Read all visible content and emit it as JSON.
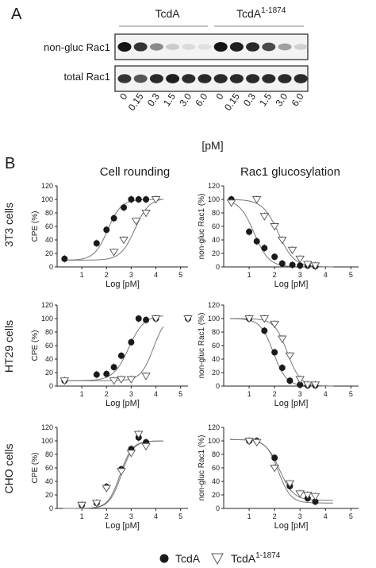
{
  "panel_labels": {
    "a": "A",
    "b": "B"
  },
  "blot": {
    "groups": [
      "TcdA",
      "TcdA"
    ],
    "group2_superscript": "1-1874",
    "rows": [
      "non-gluc Rac1",
      "total Rac1"
    ],
    "lanes": [
      "0",
      "0.15",
      "0.3",
      "1.5",
      "3.0",
      "6.0",
      "0",
      "0.15",
      "0.3",
      "1.5",
      "3.0",
      "6.0"
    ],
    "unit": "[pM]",
    "band_intensity": {
      "non-gluc Rac1": [
        1.0,
        0.85,
        0.45,
        0.15,
        0.08,
        0.05,
        1.0,
        0.95,
        0.9,
        0.75,
        0.35,
        0.12
      ],
      "total Rac1": [
        0.85,
        0.7,
        0.9,
        0.95,
        0.9,
        0.9,
        0.9,
        0.9,
        0.9,
        0.9,
        0.9,
        0.9
      ]
    }
  },
  "column_titles": [
    "Cell rounding",
    "Rac1 glucosylation"
  ],
  "row_titles": [
    "3T3 cells",
    "HT29 cells",
    "CHO cells"
  ],
  "legend": {
    "s1": "TcdA",
    "s2_base": "TcdA",
    "s2_sup": "1-1874"
  },
  "colors": {
    "s1": "#1a1a1a",
    "s2": "#ffffff",
    "stroke": "#555555"
  },
  "chart_data": [
    {
      "type": "scatter",
      "ylabel": "CPE (%)",
      "xlabel": "Log [pM]",
      "xlim": [
        0,
        5.3
      ],
      "ylim": [
        0,
        120
      ],
      "xticks": [
        "1",
        "2",
        "3",
        "4",
        "5"
      ],
      "yticks": [
        "0",
        "20",
        "40",
        "60",
        "80",
        "100",
        "120"
      ],
      "series": [
        {
          "name": "TcdA",
          "x": [
            0.3,
            1.6,
            2.0,
            2.3,
            2.7,
            3.0,
            3.3,
            3.6
          ],
          "y": [
            12,
            35,
            55,
            72,
            88,
            100,
            100,
            100
          ]
        },
        {
          "name": "TcdA 1-1874",
          "x": [
            2.3,
            2.7,
            3.2,
            3.6,
            4.0
          ],
          "y": [
            22,
            40,
            68,
            80,
            100
          ]
        }
      ],
      "fits": [
        {
          "ec50": 2.05,
          "hill": 1.6,
          "top": 100,
          "bottom": 10
        },
        {
          "ec50": 3.15,
          "hill": 1.5,
          "top": 102,
          "bottom": 10
        }
      ]
    },
    {
      "type": "scatter",
      "ylabel": "non-gluc Rac1 (%)",
      "xlabel": "Log [pM]",
      "xlim": [
        0,
        5.3
      ],
      "ylim": [
        0,
        120
      ],
      "xticks": [
        "1",
        "2",
        "3",
        "4",
        "5"
      ],
      "yticks": [
        "0",
        "20",
        "40",
        "60",
        "80",
        "100",
        "120"
      ],
      "series": [
        {
          "name": "TcdA",
          "x": [
            0.3,
            1.0,
            1.3,
            1.6,
            2.0,
            2.3,
            2.7,
            3.0,
            3.3,
            3.6
          ],
          "y": [
            100,
            52,
            38,
            28,
            15,
            5,
            3,
            2,
            2,
            1
          ]
        },
        {
          "name": "TcdA 1-1874",
          "x": [
            0.3,
            1.3,
            1.6,
            2.0,
            2.3,
            2.7,
            3.0,
            3.3,
            3.6
          ],
          "y": [
            95,
            100,
            75,
            60,
            40,
            25,
            12,
            4,
            2
          ]
        }
      ],
      "fits": [
        {
          "ec50": 1.2,
          "hill": -1.5,
          "top": 100,
          "bottom": 0
        },
        {
          "ec50": 2.15,
          "hill": -1.4,
          "top": 100,
          "bottom": 0
        }
      ]
    },
    {
      "type": "scatter",
      "ylabel": "CPE (%)",
      "xlabel": "Log [pM]",
      "xlim": [
        0,
        5.3
      ],
      "ylim": [
        0,
        120
      ],
      "xticks": [
        "1",
        "2",
        "3",
        "4",
        "5"
      ],
      "yticks": [
        "0",
        "20",
        "40",
        "60",
        "80",
        "100",
        "120"
      ],
      "series": [
        {
          "name": "TcdA",
          "x": [
            0.3,
            1.6,
            2.0,
            2.3,
            2.6,
            3.0,
            3.3,
            3.6,
            4.0,
            5.3
          ],
          "y": [
            8,
            17,
            18,
            28,
            45,
            65,
            100,
            98,
            100,
            100
          ]
        },
        {
          "name": "TcdA 1-1874",
          "x": [
            0.3,
            2.3,
            2.6,
            3.0,
            3.6,
            4.0,
            5.3
          ],
          "y": [
            8,
            8,
            10,
            10,
            15,
            100,
            100
          ]
        }
      ],
      "fits": [
        {
          "ec50": 2.9,
          "hill": 1.4,
          "top": 105,
          "bottom": 8
        },
        {
          "ec50": 3.9,
          "hill": 1.7,
          "top": 105,
          "bottom": 8
        }
      ]
    },
    {
      "type": "scatter",
      "ylabel": "non-gluc Rac1 (%)",
      "xlabel": "Log [pM]",
      "xlim": [
        0,
        5.3
      ],
      "ylim": [
        0,
        120
      ],
      "xticks": [
        "1",
        "2",
        "3",
        "4",
        "5"
      ],
      "yticks": [
        "0",
        "20",
        "40",
        "60",
        "80",
        "100",
        "120"
      ],
      "series": [
        {
          "name": "TcdA",
          "x": [
            1.0,
            1.6,
            2.0,
            2.3,
            2.6,
            3.0,
            3.3,
            3.6
          ],
          "y": [
            100,
            82,
            50,
            27,
            8,
            2,
            1,
            1
          ]
        },
        {
          "name": "TcdA 1-1874",
          "x": [
            1.0,
            1.6,
            2.0,
            2.3,
            2.6,
            3.0,
            3.3,
            3.6
          ],
          "y": [
            100,
            100,
            92,
            70,
            45,
            10,
            2,
            2
          ]
        }
      ],
      "fits": [
        {
          "ec50": 1.95,
          "hill": -1.7,
          "top": 100,
          "bottom": 0
        },
        {
          "ec50": 2.5,
          "hill": -1.7,
          "top": 100,
          "bottom": 0
        }
      ]
    },
    {
      "type": "scatter",
      "ylabel": "CPE (%)",
      "xlabel": "Log [pM]",
      "xlim": [
        0,
        5.3
      ],
      "ylim": [
        0,
        120
      ],
      "xticks": [
        "1",
        "2",
        "3",
        "4",
        "5"
      ],
      "yticks": [
        "0",
        "20",
        "40",
        "60",
        "80",
        "100",
        "120"
      ],
      "series": [
        {
          "name": "TcdA",
          "x": [
            1.0,
            1.6,
            2.0,
            2.6,
            3.0,
            3.3,
            3.6
          ],
          "y": [
            5,
            8,
            32,
            58,
            88,
            105,
            98
          ]
        },
        {
          "name": "TcdA 1-1874",
          "x": [
            1.0,
            1.6,
            2.0,
            2.6,
            3.0,
            3.3,
            3.6
          ],
          "y": [
            5,
            8,
            30,
            55,
            82,
            110,
            92
          ]
        }
      ],
      "fits": [
        {
          "ec50": 2.55,
          "hill": 1.8,
          "top": 100,
          "bottom": 0
        },
        {
          "ec50": 2.6,
          "hill": 1.8,
          "top": 100,
          "bottom": 0
        }
      ]
    },
    {
      "type": "scatter",
      "ylabel": "non-gluc Rac1 (%)",
      "xlabel": "Log [pM]",
      "xlim": [
        0,
        5.3
      ],
      "ylim": [
        0,
        120
      ],
      "xticks": [
        "1",
        "2",
        "3",
        "4",
        "5"
      ],
      "yticks": [
        "0",
        "20",
        "40",
        "60",
        "80",
        "100",
        "120"
      ],
      "series": [
        {
          "name": "TcdA",
          "x": [
            1.0,
            1.3,
            2.0,
            2.6,
            3.3,
            3.6
          ],
          "y": [
            100,
            100,
            75,
            33,
            15,
            10
          ]
        },
        {
          "name": "TcdA 1-1874",
          "x": [
            1.0,
            1.3,
            2.0,
            2.6,
            3.0,
            3.3,
            3.6
          ],
          "y": [
            100,
            98,
            60,
            37,
            22,
            20,
            18
          ]
        }
      ],
      "fits": [
        {
          "ec50": 2.15,
          "hill": -1.8,
          "top": 102,
          "bottom": 8
        },
        {
          "ec50": 2.2,
          "hill": -1.6,
          "top": 102,
          "bottom": 12
        }
      ]
    }
  ]
}
